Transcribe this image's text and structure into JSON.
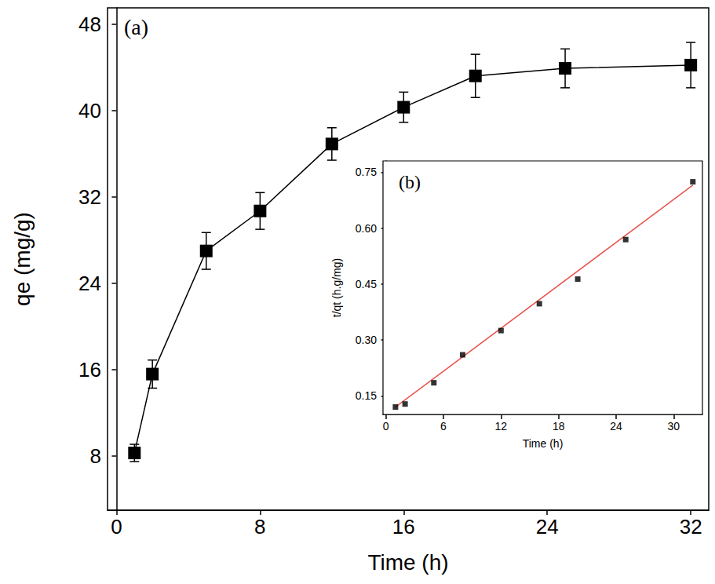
{
  "chart_data": [
    {
      "type": "line",
      "annotation": "(a)",
      "xlabel": "Time (h)",
      "ylabel": "qe (mg/g)",
      "x": [
        1,
        2,
        5,
        8,
        12,
        16,
        20,
        25,
        32
      ],
      "values": [
        8.3,
        15.6,
        27.0,
        30.7,
        36.9,
        40.3,
        43.2,
        43.9,
        44.2
      ],
      "errors": [
        0.8,
        1.3,
        1.7,
        1.7,
        1.5,
        1.4,
        2.0,
        1.8,
        2.1
      ],
      "xlim": [
        -0.5,
        33
      ],
      "ylim": [
        3,
        49.5
      ],
      "xticks": [
        0,
        8,
        16,
        24,
        32
      ],
      "yticks": [
        8,
        16,
        24,
        32,
        40,
        48
      ],
      "marker": "square",
      "color": "#000000",
      "grid": false
    },
    {
      "type": "scatter",
      "annotation": "(b)",
      "xlabel": "Time (h)",
      "ylabel": "t/qt (h.g/mg)",
      "x": [
        1,
        2,
        5,
        8,
        12,
        16,
        20,
        25,
        32
      ],
      "values": [
        0.12,
        0.128,
        0.185,
        0.26,
        0.325,
        0.397,
        0.463,
        0.569,
        0.724
      ],
      "fit": {
        "x": [
          1,
          32
        ],
        "values": [
          0.12,
          0.715
        ],
        "color": "#e8524a"
      },
      "xlim": [
        -0.3,
        33
      ],
      "ylim": [
        0.1,
        0.78
      ],
      "xticks": [
        0,
        6,
        12,
        18,
        24,
        30
      ],
      "yticks": [
        0.15,
        {
          "value": 0.3,
          "label": "0.30"
        },
        0.45,
        {
          "value": 0.6,
          "label": "0.60"
        },
        0.75
      ],
      "marker": "square",
      "color": "#000000",
      "grid": false
    }
  ]
}
